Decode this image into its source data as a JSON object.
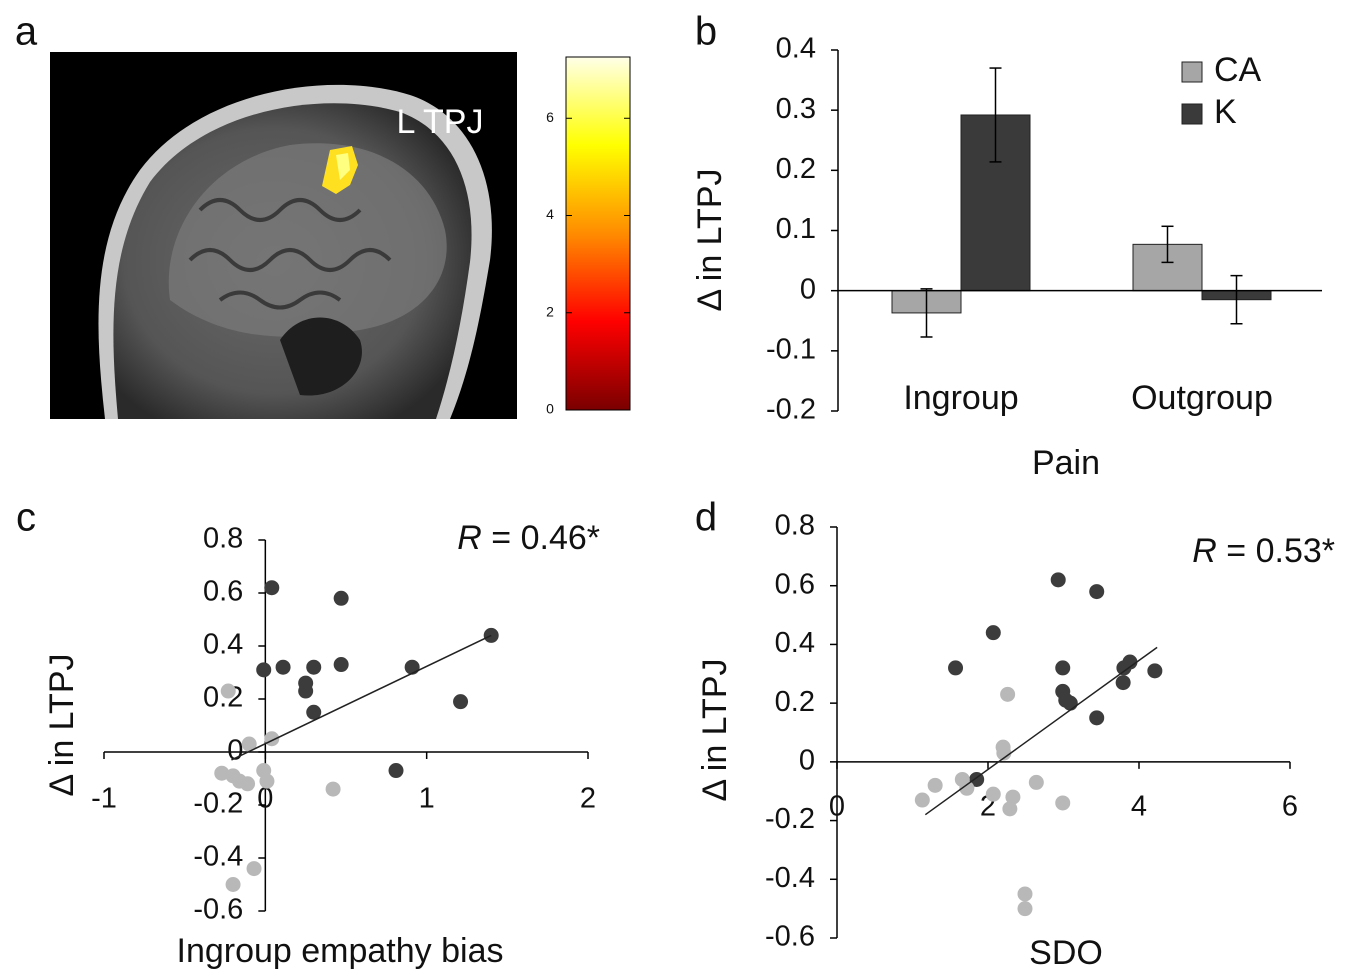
{
  "chart_data": [
    {
      "type": "image",
      "panel_label": "a",
      "annotation": "L TPJ",
      "colorbar": {
        "lim": [
          0,
          7.26
        ],
        "ticks": [
          0,
          2,
          4,
          6
        ],
        "colors": [
          "#7a0000",
          "#ff0000",
          "#ff8c00",
          "#ffff00",
          "#ffffe8"
        ]
      }
    },
    {
      "type": "bar",
      "panel_label": "b",
      "x_label": "Pain",
      "y_label": "Δ in LTPJ",
      "categories": [
        "Ingroup",
        "Outgroup"
      ],
      "series": [
        {
          "name": "CA",
          "color": "#a6a6a6",
          "values": [
            -0.037,
            0.077
          ],
          "errors": [
            0.04,
            0.03
          ]
        },
        {
          "name": "K",
          "color": "#3a3a3a",
          "values": [
            0.292,
            -0.015
          ],
          "errors": [
            0.078,
            0.04
          ]
        }
      ],
      "ylim": [
        -0.2,
        0.4
      ],
      "yticks": [
        -0.2,
        -0.1,
        0,
        0.1,
        0.2,
        0.3,
        0.4
      ],
      "legend": "top-right"
    },
    {
      "type": "scatter",
      "panel_label": "c",
      "x_label": "Ingroup empathy bias",
      "y_label": "Δ in LTPJ",
      "annotation_symbol": "R",
      "annotation": " = 0.46*",
      "series": [
        {
          "color": "#3c3c3c",
          "x": [
            0.04,
            -0.01,
            0.11,
            0.25,
            0.25,
            0.3,
            0.3,
            0.47,
            0.47,
            0.91,
            1.21,
            1.4,
            0.81
          ],
          "y": [
            0.62,
            0.31,
            0.32,
            0.26,
            0.23,
            0.15,
            0.32,
            0.58,
            0.33,
            0.32,
            0.19,
            0.44,
            -0.07
          ]
        },
        {
          "color": "#b8b8b8",
          "x": [
            -0.1,
            0.04,
            -0.27,
            -0.2,
            -0.16,
            -0.11,
            -0.01,
            0.01,
            0.42,
            -0.07,
            -0.2,
            -0.23
          ],
          "y": [
            0.03,
            0.05,
            -0.08,
            -0.09,
            -0.11,
            -0.12,
            -0.07,
            -0.11,
            -0.14,
            -0.44,
            -0.5,
            0.23
          ]
        }
      ],
      "trendline": {
        "x": [
          -0.21,
          1.4
        ],
        "y": [
          -0.03,
          0.44
        ]
      },
      "xlim": [
        -1,
        2
      ],
      "xticks": [
        -1,
        0,
        1,
        2
      ],
      "ylim": [
        -0.6,
        0.8
      ],
      "yticks": [
        -0.6,
        -0.4,
        -0.2,
        0,
        0.2,
        0.4,
        0.6,
        0.8
      ]
    },
    {
      "type": "scatter",
      "panel_label": "d",
      "x_label": "SDO",
      "y_label": "Δ in LTPJ",
      "annotation_symbol": "R",
      "annotation": " = 0.53*",
      "series": [
        {
          "color": "#3c3c3c",
          "x": [
            2.93,
            3.44,
            1.57,
            2.07,
            2.99,
            2.99,
            3.03,
            3.09,
            3.44,
            3.8,
            3.88,
            3.79,
            4.21,
            1.85
          ],
          "y": [
            0.62,
            0.58,
            0.32,
            0.44,
            0.32,
            0.24,
            0.21,
            0.2,
            0.15,
            0.32,
            0.34,
            0.27,
            0.31,
            -0.06
          ]
        },
        {
          "color": "#b8b8b8",
          "x": [
            2.26,
            2.2,
            2.21,
            1.13,
            1.3,
            1.66,
            1.72,
            2.07,
            2.29,
            2.33,
            2.64,
            2.99,
            2.49,
            2.49
          ],
          "y": [
            0.23,
            0.05,
            0.03,
            -0.13,
            -0.08,
            -0.06,
            -0.09,
            -0.11,
            -0.16,
            -0.12,
            -0.07,
            -0.14,
            -0.45,
            -0.5
          ]
        }
      ],
      "trendline": {
        "x": [
          1.17,
          4.24
        ],
        "y": [
          -0.18,
          0.39
        ]
      },
      "xlim": [
        0,
        6
      ],
      "xticks": [
        0,
        2,
        4,
        6
      ],
      "ylim": [
        -0.6,
        0.8
      ],
      "yticks": [
        -0.6,
        -0.4,
        -0.2,
        0,
        0.2,
        0.4,
        0.6,
        0.8
      ]
    }
  ]
}
